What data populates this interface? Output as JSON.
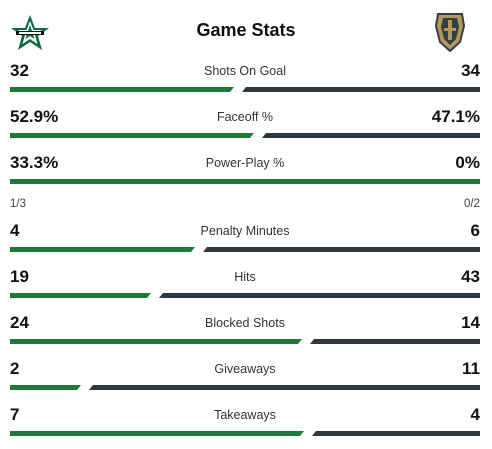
{
  "header": {
    "title": "Game Stats",
    "home_logo": "dallas-stars-star-logo",
    "away_logo": "vegas-golden-knights-helmet-logo"
  },
  "colors": {
    "home": "#1f7a3a",
    "away": "#2f3741"
  },
  "stats": [
    {
      "label": "Shots On Goal",
      "home": "32",
      "away": "34",
      "home_share": 0.485
    },
    {
      "label": "Faceoff %",
      "home": "52.9%",
      "away": "47.1%",
      "home_share": 0.529
    },
    {
      "label": "Power-Play %",
      "home": "33.3%",
      "away": "0%",
      "home_share": 1.0,
      "home_sub": "1/3",
      "away_sub": "0/2"
    },
    {
      "label": "Penalty Minutes",
      "home": "4",
      "away": "6",
      "home_share": 0.4
    },
    {
      "label": "Hits",
      "home": "19",
      "away": "43",
      "home_share": 0.306
    },
    {
      "label": "Blocked Shots",
      "home": "24",
      "away": "14",
      "home_share": 0.632
    },
    {
      "label": "Giveaways",
      "home": "2",
      "away": "11",
      "home_share": 0.154
    },
    {
      "label": "Takeaways",
      "home": "7",
      "away": "4",
      "home_share": 0.636
    }
  ]
}
